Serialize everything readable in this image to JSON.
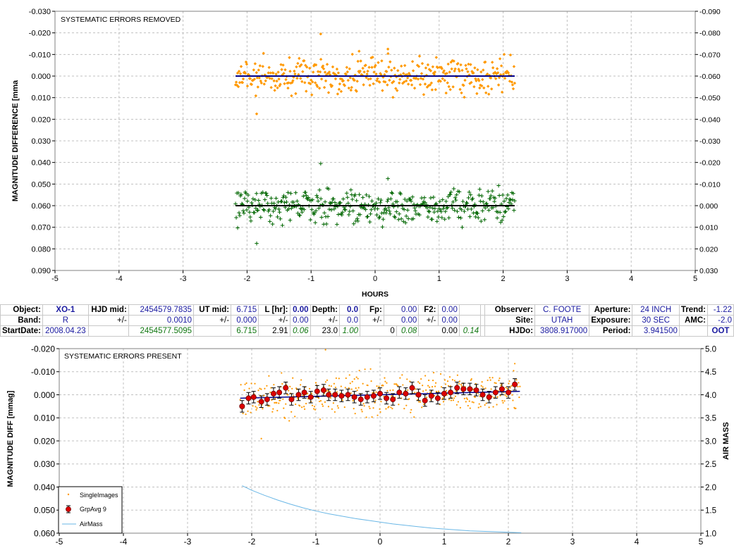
{
  "top": {
    "annotation": "SYSTEMATIC ERRORS REMOVED",
    "ylabel": "MAGNITUDE DIFFERENCE [mma",
    "xlabel": "HOURS"
  },
  "bottom": {
    "annotation": "SYSTEMATIC ERRORS PRESENT",
    "ylabel": "MAGNITUDE DIFF [mmag]",
    "y2label": "AIR MASS"
  },
  "params": {
    "object_label": "Object:",
    "object": "XO-1",
    "band_label": "Band:",
    "band": "R",
    "startdate_label": "StartDate:",
    "startdate": "2008.04.23",
    "hjdmid_label": "HJD mid:",
    "hjdmid": "2454579.7835",
    "pm": "+/-",
    "hjd_err": "0.0010",
    "hjd_start": "2454577.5095",
    "utmid_label": "UT mid:",
    "utmid": "6.715",
    "ut_err": "0.000",
    "ut_start": "6.715",
    "lhr_label": "L [hr]:",
    "lhr": "0.00",
    "lhr_err": "0.00",
    "lhr_fit": "2.91",
    "lhr_fit_err": "0.06",
    "depth_label": "Depth:",
    "depth": "0.0",
    "depth_err": "0.0",
    "depth_fit": "23.0",
    "depth_fit_err": "1.00",
    "fp_label": "Fp:",
    "fp": "0.00",
    "fp_err": "0.00",
    "fp_fit": "0",
    "fp_fit_err": "0.08",
    "f2_label": "F2:",
    "f2": "0.00",
    "f2_err": "0.00",
    "f2_fit": "0.00",
    "f2_fit_err": "0.14",
    "observer_label": "Observer:",
    "observer": "C. FOOTE",
    "site_label": "Site:",
    "site": "UTAH",
    "hjdo_label": "HJDo:",
    "hjdo": "3808.917000",
    "aperture_label": "Aperture:",
    "aperture": "24 INCH",
    "exposure_label": "Exposure:",
    "exposure": "30 SEC",
    "period_label": "Period:",
    "period": "3.941500",
    "trend_label": "Trend:",
    "trend": "-1.22",
    "amc_label": "AMC:",
    "amc": "-2.0",
    "oot": "OOT"
  },
  "chart_data": [
    {
      "type": "scatter",
      "title": "SYSTEMATIC ERRORS REMOVED",
      "xlabel": "HOURS",
      "ylabel": "MAGNITUDE DIFFERENCE [mma",
      "xlim": [
        -5,
        5
      ],
      "ylim": [
        -0.03,
        0.09
      ],
      "y_inverted": true,
      "y2lim": [
        -0.09,
        0.03
      ],
      "y2_inverted": true,
      "x_ticks": [
        "-5",
        "-4",
        "-3",
        "-2",
        "-1",
        "0",
        "1",
        "2",
        "3",
        "4",
        "5"
      ],
      "y_ticks": [
        "-0.030",
        "-0.020",
        "-0.010",
        "0.000",
        "0.010",
        "0.020",
        "0.030",
        "0.040",
        "0.050",
        "0.060",
        "0.070",
        "0.080",
        "0.090"
      ],
      "y2_ticks": [
        "-0.090",
        "-0.080",
        "-0.070",
        "-0.060",
        "-0.050",
        "-0.040",
        "-0.030",
        "-0.020",
        "-0.010",
        "0.000",
        "0.010",
        "0.020",
        "0.030"
      ],
      "grid": true,
      "series": [
        {
          "color": "#ff9900",
          "marker": "diamond",
          "x_range": [
            -2.18,
            2.18
          ],
          "n_points": 400,
          "center": 0.0,
          "spread": 0.004,
          "outliers": [
            {
              "x": -0.85,
              "y": -0.0195
            },
            {
              "x": -1.85,
              "y": 0.0175
            },
            {
              "x": -0.25,
              "y": -0.0115
            },
            {
              "x": 0.2,
              "y": -0.0125
            }
          ]
        },
        {
          "color": "#006600",
          "marker": "plus",
          "x_range": [
            -2.18,
            2.18
          ],
          "n_points": 400,
          "center": 0.06,
          "spread": 0.004,
          "outliers": [
            {
              "x": -0.85,
              "y": 0.0405
            },
            {
              "x": -1.85,
              "y": 0.0775
            },
            {
              "x": 0.2,
              "y": 0.0475
            }
          ]
        }
      ],
      "trend_lines": [
        {
          "color": "#00008b",
          "x": [
            -2.18,
            2.18
          ],
          "y": [
            0.0,
            0.0
          ]
        },
        {
          "color": "#000000",
          "x": [
            -2.18,
            2.18
          ],
          "y": [
            0.06,
            0.06
          ]
        }
      ]
    },
    {
      "type": "scatter",
      "title": "SYSTEMATIC ERRORS PRESENT",
      "ylabel": "MAGNITUDE DIFF [mmag]",
      "y2label": "AIR MASS",
      "xlim": [
        -5,
        5
      ],
      "ylim": [
        -0.02,
        0.06
      ],
      "y_inverted": true,
      "y2lim": [
        1.0,
        5.0
      ],
      "x_ticks": [
        "-5",
        "-4",
        "-3",
        "-2",
        "-1",
        "0",
        "1",
        "2",
        "3",
        "4",
        "5"
      ],
      "y_ticks": [
        "-0.020",
        "-0.010",
        "0.000",
        "0.010",
        "0.020",
        "0.030",
        "0.040",
        "0.050",
        "0.060"
      ],
      "y2_ticks": [
        "5.0",
        "4.5",
        "4.0",
        "3.5",
        "3.0",
        "2.5",
        "2.0",
        "1.5",
        "1.0"
      ],
      "grid": true,
      "legend": {
        "placement": "bottom-left",
        "entries": [
          "SingleImages",
          "GrpAvg 9",
          "AirMass"
        ]
      },
      "series": [
        {
          "name": "SingleImages",
          "color": "#ff9900",
          "marker": "dot",
          "x_range": [
            -2.18,
            2.18
          ],
          "n_points": 400,
          "spread": 0.0045,
          "outliers": [
            {
              "x": -0.85,
              "y": -0.0195
            },
            {
              "x": -1.85,
              "y": 0.019
            },
            {
              "x": 2.1,
              "y": -0.0135
            }
          ]
        },
        {
          "name": "GrpAvg 9",
          "color": "#dd0000",
          "marker": "circle-errorbar",
          "x": [
            -2.15,
            -2.05,
            -1.97,
            -1.85,
            -1.76,
            -1.66,
            -1.57,
            -1.47,
            -1.38,
            -1.27,
            -1.18,
            -1.08,
            -0.98,
            -0.88,
            -0.8,
            -0.7,
            -0.6,
            -0.5,
            -0.4,
            -0.3,
            -0.2,
            -0.1,
            0.0,
            0.1,
            0.2,
            0.3,
            0.4,
            0.5,
            0.6,
            0.7,
            0.8,
            0.9,
            1.0,
            1.1,
            1.2,
            1.3,
            1.4,
            1.5,
            1.6,
            1.7,
            1.8,
            1.9,
            2.0,
            2.1
          ],
          "y": [
            0.005,
            0.0015,
            0.001,
            0.003,
            0.002,
            -0.0005,
            -0.001,
            -0.003,
            0.002,
            0.0,
            -0.001,
            0.001,
            -0.0015,
            -0.002,
            0.0,
            0.0,
            0.0005,
            0.0,
            0.001,
            0.002,
            0.001,
            0.0005,
            -0.0005,
            0.0015,
            0.002,
            -0.001,
            -0.0005,
            -0.003,
            0.0,
            0.0025,
            0.0005,
            0.0015,
            -0.0005,
            -0.001,
            -0.003,
            -0.0025,
            -0.0025,
            -0.002,
            0.0,
            0.001,
            -0.001,
            -0.0025,
            -0.001,
            -0.0045
          ],
          "err": 0.0025
        },
        {
          "name": "AirMass",
          "color": "#6ab7e6",
          "axis": "y2",
          "line": true,
          "x": [
            -2.15,
            -2.0,
            -1.8,
            -1.6,
            -1.4,
            -1.2,
            -1.0,
            -0.8,
            -0.6,
            -0.4,
            -0.2,
            0.0,
            0.2,
            0.4,
            0.6,
            0.8,
            1.0,
            1.2,
            1.4,
            1.6,
            1.8,
            2.0,
            2.2
          ],
          "y": [
            2.03,
            1.93,
            1.82,
            1.72,
            1.63,
            1.55,
            1.48,
            1.42,
            1.37,
            1.32,
            1.28,
            1.24,
            1.2,
            1.17,
            1.14,
            1.11,
            1.09,
            1.07,
            1.05,
            1.04,
            1.03,
            1.02,
            1.01
          ]
        }
      ],
      "trend_lines": [
        {
          "color": "#00008b",
          "x": [
            -2.18,
            2.18
          ],
          "y": [
            0.0015,
            -0.0015
          ]
        }
      ]
    }
  ]
}
